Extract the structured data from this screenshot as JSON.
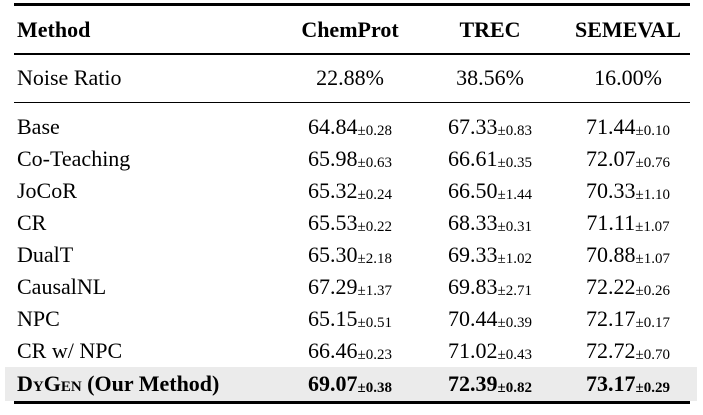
{
  "table": {
    "columns": [
      "Method",
      "ChemProt",
      "TREC",
      "SEMEVAL"
    ],
    "noise_row": {
      "label": "Noise Ratio",
      "values": [
        "22.88%",
        "38.56%",
        "16.00%"
      ]
    },
    "rows": [
      {
        "method": "Base",
        "chemprot": {
          "mean": "64.84",
          "std": "±0.28"
        },
        "trec": {
          "mean": "67.33",
          "std": "±0.83"
        },
        "semeval": {
          "mean": "71.44",
          "std": "±0.10"
        }
      },
      {
        "method": "Co-Teaching",
        "chemprot": {
          "mean": "65.98",
          "std": "±0.63"
        },
        "trec": {
          "mean": "66.61",
          "std": "±0.35"
        },
        "semeval": {
          "mean": "72.07",
          "std": "±0.76"
        }
      },
      {
        "method": "JoCoR",
        "chemprot": {
          "mean": "65.32",
          "std": "±0.24"
        },
        "trec": {
          "mean": "66.50",
          "std": "±1.44"
        },
        "semeval": {
          "mean": "70.33",
          "std": "±1.10"
        }
      },
      {
        "method": "CR",
        "chemprot": {
          "mean": "65.53",
          "std": "±0.22"
        },
        "trec": {
          "mean": "68.33",
          "std": "±0.31"
        },
        "semeval": {
          "mean": "71.11",
          "std": "±1.07"
        }
      },
      {
        "method": "DualT",
        "chemprot": {
          "mean": "65.30",
          "std": "±2.18"
        },
        "trec": {
          "mean": "69.33",
          "std": "±1.02"
        },
        "semeval": {
          "mean": "70.88",
          "std": "±1.07"
        }
      },
      {
        "method": "CausalNL",
        "chemprot": {
          "mean": "67.29",
          "std": "±1.37"
        },
        "trec": {
          "mean": "69.83",
          "std": "±2.71"
        },
        "semeval": {
          "mean": "72.22",
          "std": "±0.26"
        }
      },
      {
        "method": "NPC",
        "chemprot": {
          "mean": "65.15",
          "std": "±0.51"
        },
        "trec": {
          "mean": "70.44",
          "std": "±0.39"
        },
        "semeval": {
          "mean": "72.17",
          "std": "±0.17"
        }
      },
      {
        "method": "CR w/ NPC",
        "chemprot": {
          "mean": "66.46",
          "std": "±0.23"
        },
        "trec": {
          "mean": "71.02",
          "std": "±0.43"
        },
        "semeval": {
          "mean": "72.72",
          "std": "±0.70"
        }
      },
      {
        "method": "DyGen",
        "method_suffix": " (Our Method)",
        "smallcaps": true,
        "highlight": true,
        "chemprot": {
          "mean": "69.07",
          "std": "±0.38"
        },
        "trec": {
          "mean": "72.39",
          "std": "±0.82"
        },
        "semeval": {
          "mean": "73.17",
          "std": "±0.29"
        }
      }
    ]
  },
  "colors": {
    "highlight_bg": "#ebebeb",
    "rule": "#000000",
    "text": "#000000"
  }
}
